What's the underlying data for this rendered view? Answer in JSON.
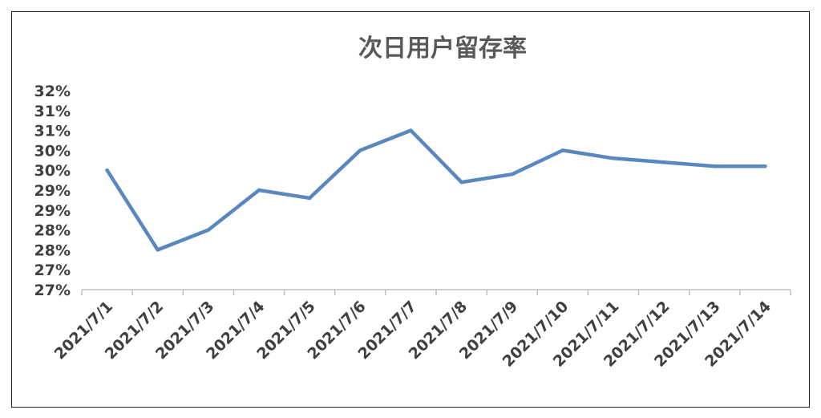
{
  "chart_data": {
    "type": "line",
    "title": "次日用户留存率",
    "xlabel": "",
    "ylabel": "",
    "x": [
      "2021/7/1",
      "2021/7/2",
      "2021/7/3",
      "2021/7/4",
      "2021/7/5",
      "2021/7/6",
      "2021/7/7",
      "2021/7/8",
      "2021/7/9",
      "2021/7/10",
      "2021/7/11",
      "2021/7/12",
      "2021/7/13",
      "2021/7/14"
    ],
    "series": [
      {
        "values": [
          30.0,
          28.0,
          28.5,
          29.5,
          29.3,
          30.5,
          31.0,
          29.7,
          29.9,
          30.5,
          30.3,
          30.2,
          30.1,
          30.1
        ]
      }
    ],
    "y_tick_labels": [
      "27%",
      "27%",
      "28%",
      "28%",
      "29%",
      "29%",
      "30%",
      "30%",
      "31%",
      "31%",
      "32%"
    ],
    "ylim": [
      27.0,
      32.0
    ],
    "grid": false,
    "legend": "none",
    "line_color": "#5B87BF",
    "axis_color": "#BFBFBF"
  }
}
